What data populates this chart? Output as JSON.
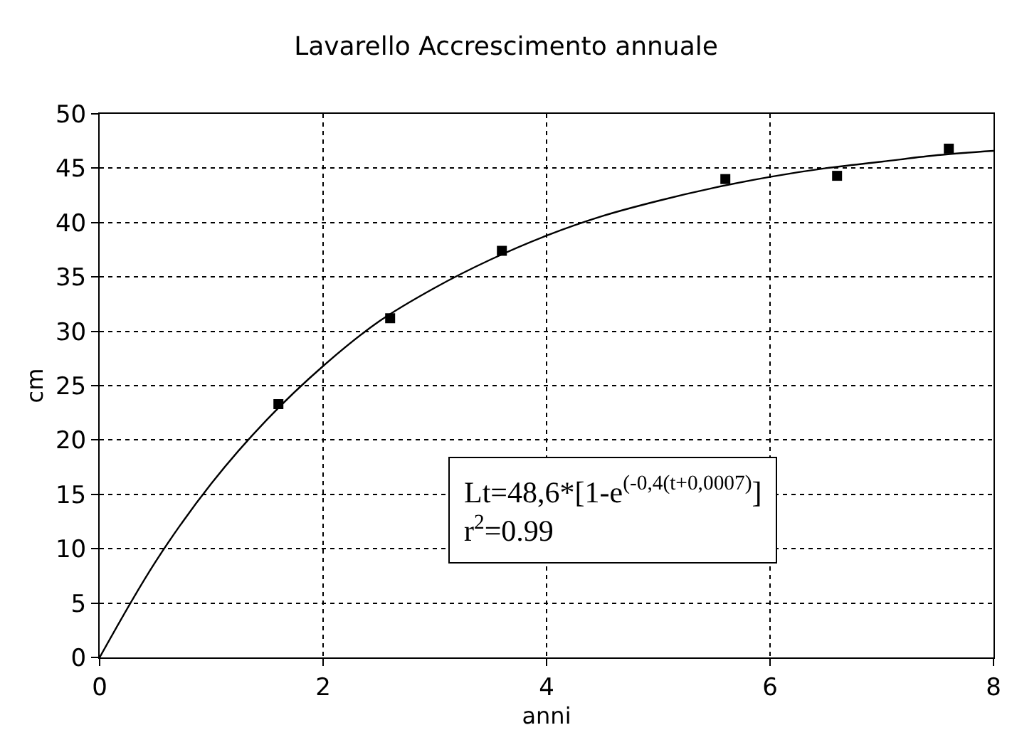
{
  "chart_data": {
    "type": "scatter",
    "title": "Lavarello Accrescimento annuale",
    "xlabel": "anni",
    "ylabel": "cm",
    "xlim": [
      0,
      8
    ],
    "xticks": [
      0,
      2,
      4,
      6,
      8
    ],
    "ylim": [
      0,
      50
    ],
    "yticks": [
      0,
      5,
      10,
      15,
      20,
      25,
      30,
      35,
      40,
      45,
      50
    ],
    "grid": true,
    "series": [
      {
        "marker": "square",
        "color": "#000000",
        "x": [
          1.6,
          2.6,
          3.6,
          5.6,
          6.6,
          7.6
        ],
        "values": [
          23.3,
          31.2,
          37.4,
          44.0,
          44.3,
          46.8
        ]
      },
      {
        "type": "line",
        "marker": "none",
        "line_style": "solid",
        "color": "#000000",
        "x": [
          0,
          0.5,
          1,
          1.5,
          2,
          2.5,
          3,
          3.5,
          4,
          4.5,
          5,
          5.5,
          6,
          6.5,
          7,
          7.5,
          8
        ],
        "values": [
          0.0,
          8.8,
          16.0,
          21.9,
          26.8,
          30.9,
          34.0,
          36.6,
          38.8,
          40.6,
          42.0,
          43.2,
          44.2,
          45.0,
          45.6,
          46.2,
          46.6
        ]
      }
    ],
    "annotations": [
      "Lt=48,6*[1-e$^{(-0,4(t+0,0007)}$]",
      "r$^{2}$=0.99"
    ]
  }
}
